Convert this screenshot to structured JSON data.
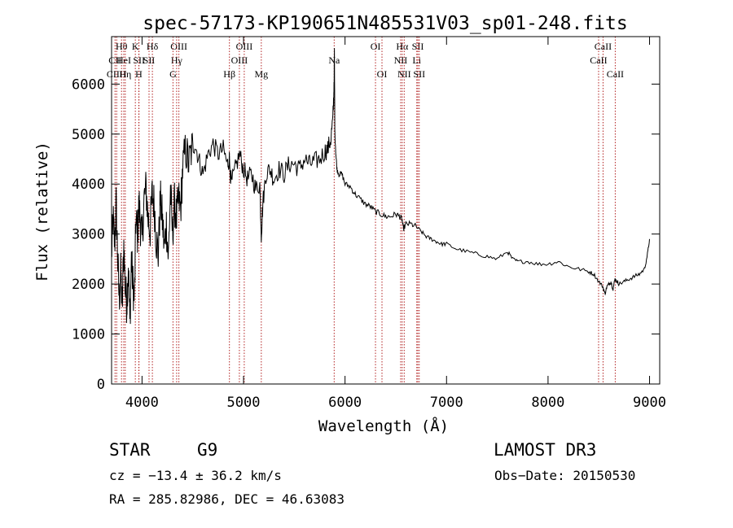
{
  "chart_data": {
    "type": "line",
    "title": "spec-57173-KP190651N485531V03_sp01-248.fits",
    "xlabel": "Wavelength (Å)",
    "ylabel": "Flux (relative)",
    "xlim": [
      3700,
      9100
    ],
    "ylim": [
      0,
      6950
    ],
    "x_ticks": [
      4000,
      5000,
      6000,
      7000,
      8000,
      9000
    ],
    "y_ticks": [
      0,
      1000,
      2000,
      3000,
      4000,
      5000,
      6000
    ],
    "series": [
      {
        "name": "flux",
        "x": [
          3700,
          3715,
          3730,
          3745,
          3760,
          3775,
          3790,
          3805,
          3820,
          3835,
          3850,
          3865,
          3880,
          3895,
          3910,
          3925,
          3940,
          3955,
          3970,
          3985,
          4000,
          4020,
          4040,
          4060,
          4080,
          4100,
          4120,
          4140,
          4160,
          4180,
          4200,
          4220,
          4240,
          4260,
          4280,
          4300,
          4320,
          4340,
          4360,
          4380,
          4400,
          4430,
          4460,
          4490,
          4520,
          4560,
          4600,
          4650,
          4700,
          4750,
          4800,
          4840,
          4860,
          4880,
          4920,
          4960,
          5000,
          5040,
          5080,
          5120,
          5160,
          5175,
          5190,
          5220,
          5260,
          5300,
          5350,
          5400,
          5450,
          5500,
          5550,
          5600,
          5650,
          5700,
          5750,
          5800,
          5830,
          5860,
          5880,
          5890,
          5895,
          5900,
          5910,
          5920,
          5940,
          5970,
          6000,
          6050,
          6100,
          6150,
          6200,
          6250,
          6300,
          6350,
          6400,
          6450,
          6500,
          6540,
          6560,
          6575,
          6600,
          6650,
          6700,
          6750,
          6800,
          6850,
          6900,
          6950,
          7000,
          7100,
          7200,
          7300,
          7400,
          7500,
          7600,
          7650,
          7700,
          7800,
          7900,
          8000,
          8100,
          8200,
          8300,
          8400,
          8450,
          8500,
          8540,
          8560,
          8580,
          8600,
          8620,
          8640,
          8660,
          8680,
          8700,
          8750,
          8800,
          8850,
          8900,
          8950,
          8980,
          9000
        ],
        "y": [
          2600,
          3300,
          2800,
          3600,
          2500,
          1700,
          2200,
          1500,
          2800,
          1900,
          1600,
          2400,
          1200,
          2500,
          2000,
          1700,
          3300,
          3000,
          3600,
          3200,
          2900,
          3700,
          3900,
          3300,
          3100,
          3800,
          3600,
          2900,
          2600,
          3700,
          3300,
          2700,
          3200,
          2500,
          3900,
          3000,
          3600,
          3300,
          3700,
          3500,
          4300,
          4700,
          4400,
          4700,
          4800,
          4500,
          4200,
          4600,
          4800,
          4600,
          4700,
          4400,
          4500,
          4000,
          4300,
          4600,
          4300,
          4100,
          4200,
          3900,
          4000,
          3000,
          3600,
          4200,
          4300,
          4100,
          4300,
          4200,
          4400,
          4400,
          4300,
          4500,
          4400,
          4450,
          4500,
          4650,
          4700,
          4900,
          5300,
          5800,
          6600,
          5000,
          4600,
          4300,
          4200,
          4200,
          4000,
          3950,
          3800,
          3700,
          3600,
          3550,
          3450,
          3400,
          3350,
          3350,
          3400,
          3350,
          3300,
          3100,
          3200,
          3200,
          3150,
          3050,
          2950,
          2900,
          2850,
          2800,
          2800,
          2700,
          2650,
          2600,
          2550,
          2500,
          2650,
          2500,
          2450,
          2450,
          2400,
          2400,
          2450,
          2350,
          2300,
          2250,
          2200,
          2050,
          1950,
          1800,
          1950,
          2000,
          2050,
          1900,
          2100,
          2050,
          2000,
          2050,
          2100,
          2150,
          2200,
          2300,
          2600,
          2900
        ]
      }
    ],
    "lines": [
      {
        "label": "CII",
        "x": 3734,
        "row": 2
      },
      {
        "label": "CIIH",
        "x": 3750,
        "row": 3
      },
      {
        "label": "Hθ",
        "x": 3798,
        "row": 1
      },
      {
        "label": "HeI",
        "x": 3820,
        "row": 2
      },
      {
        "label": "Hη",
        "x": 3835,
        "row": 3
      },
      {
        "label": "K",
        "x": 3934,
        "row": 1
      },
      {
        "label": "SII",
        "x": 3970,
        "row": 2
      },
      {
        "label": "H",
        "x": 3968,
        "row": 3
      },
      {
        "label": "Hδ",
        "x": 4102,
        "row": 1
      },
      {
        "label": "SII",
        "x": 4069,
        "row": 2
      },
      {
        "label": "OIII",
        "x": 4363,
        "row": 1
      },
      {
        "label": "Hγ",
        "x": 4341,
        "row": 2
      },
      {
        "label": "G",
        "x": 4305,
        "row": 3
      },
      {
        "label": "Hβ",
        "x": 4861,
        "row": 3
      },
      {
        "label": "OIII",
        "x": 5007,
        "row": 1
      },
      {
        "label": "OIII",
        "x": 4959,
        "row": 2
      },
      {
        "label": "Mg",
        "x": 5175,
        "row": 3
      },
      {
        "label": "Na",
        "x": 5893,
        "row": 2
      },
      {
        "label": "OI",
        "x": 6300,
        "row": 1
      },
      {
        "label": "OI",
        "x": 6364,
        "row": 3
      },
      {
        "label": "Hα",
        "x": 6563,
        "row": 1
      },
      {
        "label": "NII",
        "x": 6548,
        "row": 2
      },
      {
        "label": "NII",
        "x": 6583,
        "row": 3
      },
      {
        "label": "SII",
        "x": 6717,
        "row": 1
      },
      {
        "label": "Li",
        "x": 6707,
        "row": 2
      },
      {
        "label": "SII",
        "x": 6731,
        "row": 3
      },
      {
        "label": "CaII",
        "x": 8542,
        "row": 1
      },
      {
        "label": "CaII",
        "x": 8498,
        "row": 2
      },
      {
        "label": "CaII",
        "x": 8662,
        "row": 3
      }
    ]
  },
  "info": {
    "class": "STAR",
    "subclass": "G9",
    "survey": "LAMOST DR3",
    "cz": "cz = −13.4 ± 36.2 km/s",
    "obs_date": "Obs−Date: 20150530",
    "coords": "RA = 285.82986, DEC =  46.63083"
  },
  "colors": {
    "spectrum": "#000000",
    "line_marker": "#b22222",
    "axes": "#000000",
    "background": "#ffffff"
  }
}
